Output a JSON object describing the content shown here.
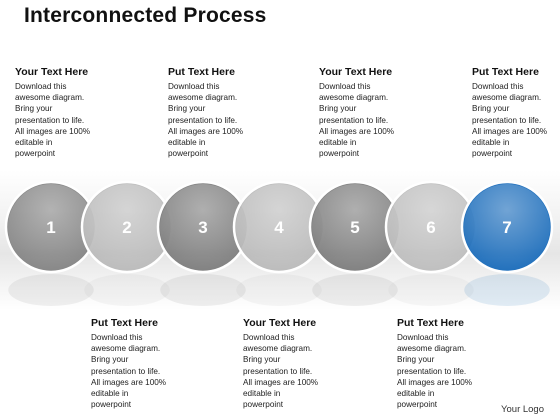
{
  "title": "Interconnected Process",
  "top_texts": [
    {
      "heading": "Your Text Here",
      "body": "Download this\nawesome diagram.\nBring your\npresentation to life.\nAll images are 100%\neditable in\npowerpoint"
    },
    {
      "heading": "Put Text Here",
      "body": "Download this\nawesome diagram.\nBring your\npresentation to life.\nAll images are 100%\neditable in\npowerpoint"
    },
    {
      "heading": "Your Text Here",
      "body": "Download this\nawesome diagram.\nBring your\npresentation to life.\nAll images are 100%\neditable in\npowerpoint"
    },
    {
      "heading": "Put Text Here",
      "body": "Download this\nawesome diagram.\nBring your\npresentation to life.\nAll images are 100%\neditable in\npowerpoint"
    }
  ],
  "bottom_texts": [
    {
      "heading": "Put Text Here",
      "body": "Download this\nawesome diagram.\nBring your\npresentation to life.\nAll images are 100%\neditable in\npowerpoint"
    },
    {
      "heading": "Your Text Here",
      "body": "Download this\nawesome diagram.\nBring your\npresentation to life.\nAll images are 100%\neditable in\npowerpoint"
    },
    {
      "heading": "Put Text Here",
      "body": "Download this\nawesome diagram.\nBring your\npresentation to life.\nAll images are 100%\neditable in\npowerpoint"
    }
  ],
  "circles": [
    {
      "label": "1",
      "color": "#808080"
    },
    {
      "label": "2",
      "color": "#b8b8b8"
    },
    {
      "label": "3",
      "color": "#7a7a7a"
    },
    {
      "label": "4",
      "color": "#b8b8b8"
    },
    {
      "label": "5",
      "color": "#7a7a7a"
    },
    {
      "label": "6",
      "color": "#bcbcbc"
    },
    {
      "label": "7",
      "color": "#1267b8"
    }
  ],
  "logo": "Your Logo"
}
